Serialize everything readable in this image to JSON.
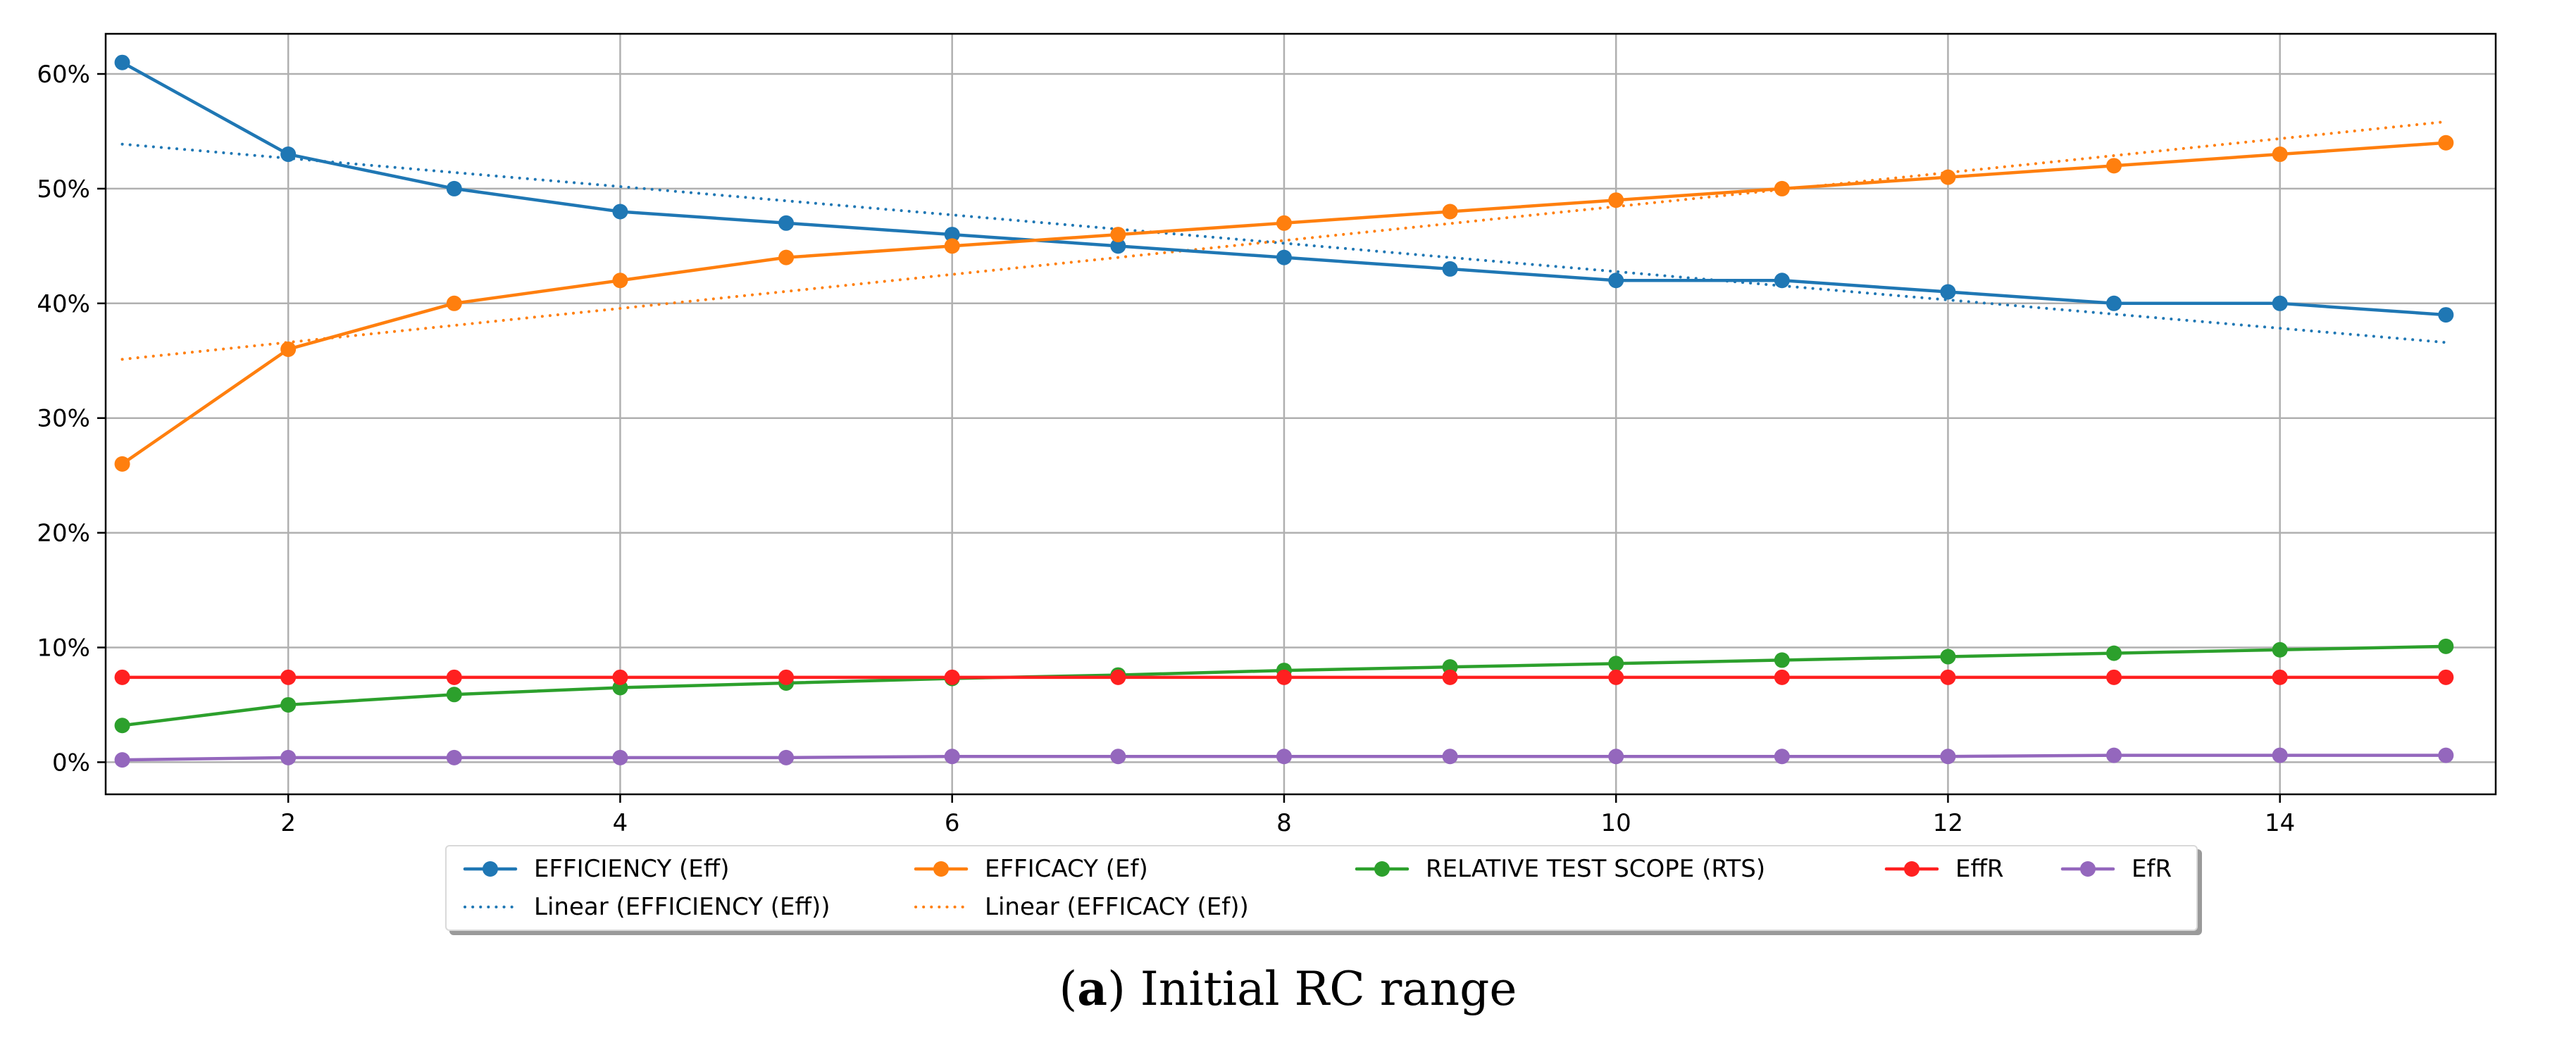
{
  "chart_data": {
    "type": "line",
    "title": "",
    "xlabel": "",
    "ylabel": "",
    "x": [
      1,
      2,
      3,
      4,
      5,
      6,
      7,
      8,
      9,
      10,
      11,
      12,
      13,
      14,
      15
    ],
    "xlim": [
      0.9,
      15.3
    ],
    "ylim": [
      -0.028,
      0.635
    ],
    "x_ticks": [
      2,
      4,
      6,
      8,
      10,
      12,
      14
    ],
    "x_tick_labels": [
      "2",
      "4",
      "6",
      "8",
      "10",
      "12",
      "14"
    ],
    "y_ticks": [
      0,
      0.1,
      0.2,
      0.3,
      0.4,
      0.5,
      0.6
    ],
    "y_tick_labels": [
      "0%",
      "10%",
      "20%",
      "30%",
      "40%",
      "50%",
      "60%"
    ],
    "grid": true,
    "legend_position": "bottom-center",
    "series": [
      {
        "name": "EFFICIENCY (Eff)",
        "color": "#1f77b4",
        "style": "solid",
        "markers": true,
        "values": [
          0.61,
          0.53,
          0.5,
          0.48,
          0.47,
          0.46,
          0.45,
          0.44,
          0.43,
          0.42,
          0.42,
          0.41,
          0.4,
          0.4,
          0.39
        ]
      },
      {
        "name": "EFFICACY (Ef)",
        "color": "#ff7f0e",
        "style": "solid",
        "markers": true,
        "values": [
          0.26,
          0.36,
          0.4,
          0.42,
          0.44,
          0.45,
          0.46,
          0.47,
          0.48,
          0.49,
          0.5,
          0.51,
          0.52,
          0.53,
          0.54
        ]
      },
      {
        "name": "RELATIVE TEST SCOPE (RTS)",
        "color": "#2ca02c",
        "style": "solid",
        "markers": true,
        "values": [
          0.032,
          0.05,
          0.059,
          0.065,
          0.069,
          0.073,
          0.076,
          0.08,
          0.083,
          0.086,
          0.089,
          0.092,
          0.095,
          0.098,
          0.101
        ]
      },
      {
        "name": "EffR",
        "color": "#ff2020",
        "style": "solid",
        "markers": true,
        "values": [
          0.074,
          0.074,
          0.074,
          0.074,
          0.074,
          0.074,
          0.074,
          0.074,
          0.074,
          0.074,
          0.074,
          0.074,
          0.074,
          0.074,
          0.074
        ]
      },
      {
        "name": "EfR",
        "color": "#9467bd",
        "style": "solid",
        "markers": true,
        "values": [
          0.002,
          0.004,
          0.004,
          0.004,
          0.004,
          0.005,
          0.005,
          0.005,
          0.005,
          0.005,
          0.005,
          0.005,
          0.006,
          0.006,
          0.006
        ]
      },
      {
        "name": "Linear (EFFICIENCY (Eff))",
        "color": "#1f77b4",
        "style": "dotted",
        "markers": false,
        "values": [
          0.5388,
          0.5265,
          0.5141,
          0.5018,
          0.4894,
          0.4771,
          0.4647,
          0.4524,
          0.44,
          0.4277,
          0.4153,
          0.403,
          0.3906,
          0.3783,
          0.3659
        ]
      },
      {
        "name": "Linear (EFFICACY (Ef))",
        "color": "#ff7f0e",
        "style": "dotted",
        "markers": false,
        "values": [
          0.3512,
          0.366,
          0.3808,
          0.3956,
          0.4104,
          0.4252,
          0.44,
          0.4548,
          0.4696,
          0.4844,
          0.4992,
          0.514,
          0.5288,
          0.5436,
          0.5584
        ]
      }
    ]
  },
  "legend": {
    "entries": [
      {
        "label": "EFFICIENCY (Eff)",
        "color": "#1f77b4",
        "style": "solid"
      },
      {
        "label": "EFFICACY (Ef)",
        "color": "#ff7f0e",
        "style": "solid"
      },
      {
        "label": "RELATIVE TEST SCOPE (RTS)",
        "color": "#2ca02c",
        "style": "solid"
      },
      {
        "label": "EffR",
        "color": "#ff2020",
        "style": "solid"
      },
      {
        "label": "EfR",
        "color": "#9467bd",
        "style": "solid"
      },
      {
        "label": "Linear (EFFICIENCY (Eff))",
        "color": "#1f77b4",
        "style": "dotted"
      },
      {
        "label": "Linear (EFFICACY (Ef))",
        "color": "#ff7f0e",
        "style": "dotted"
      }
    ]
  },
  "caption": {
    "letter_open": "(",
    "letter": "a",
    "letter_close": ")",
    "text": " Initial RC range"
  }
}
